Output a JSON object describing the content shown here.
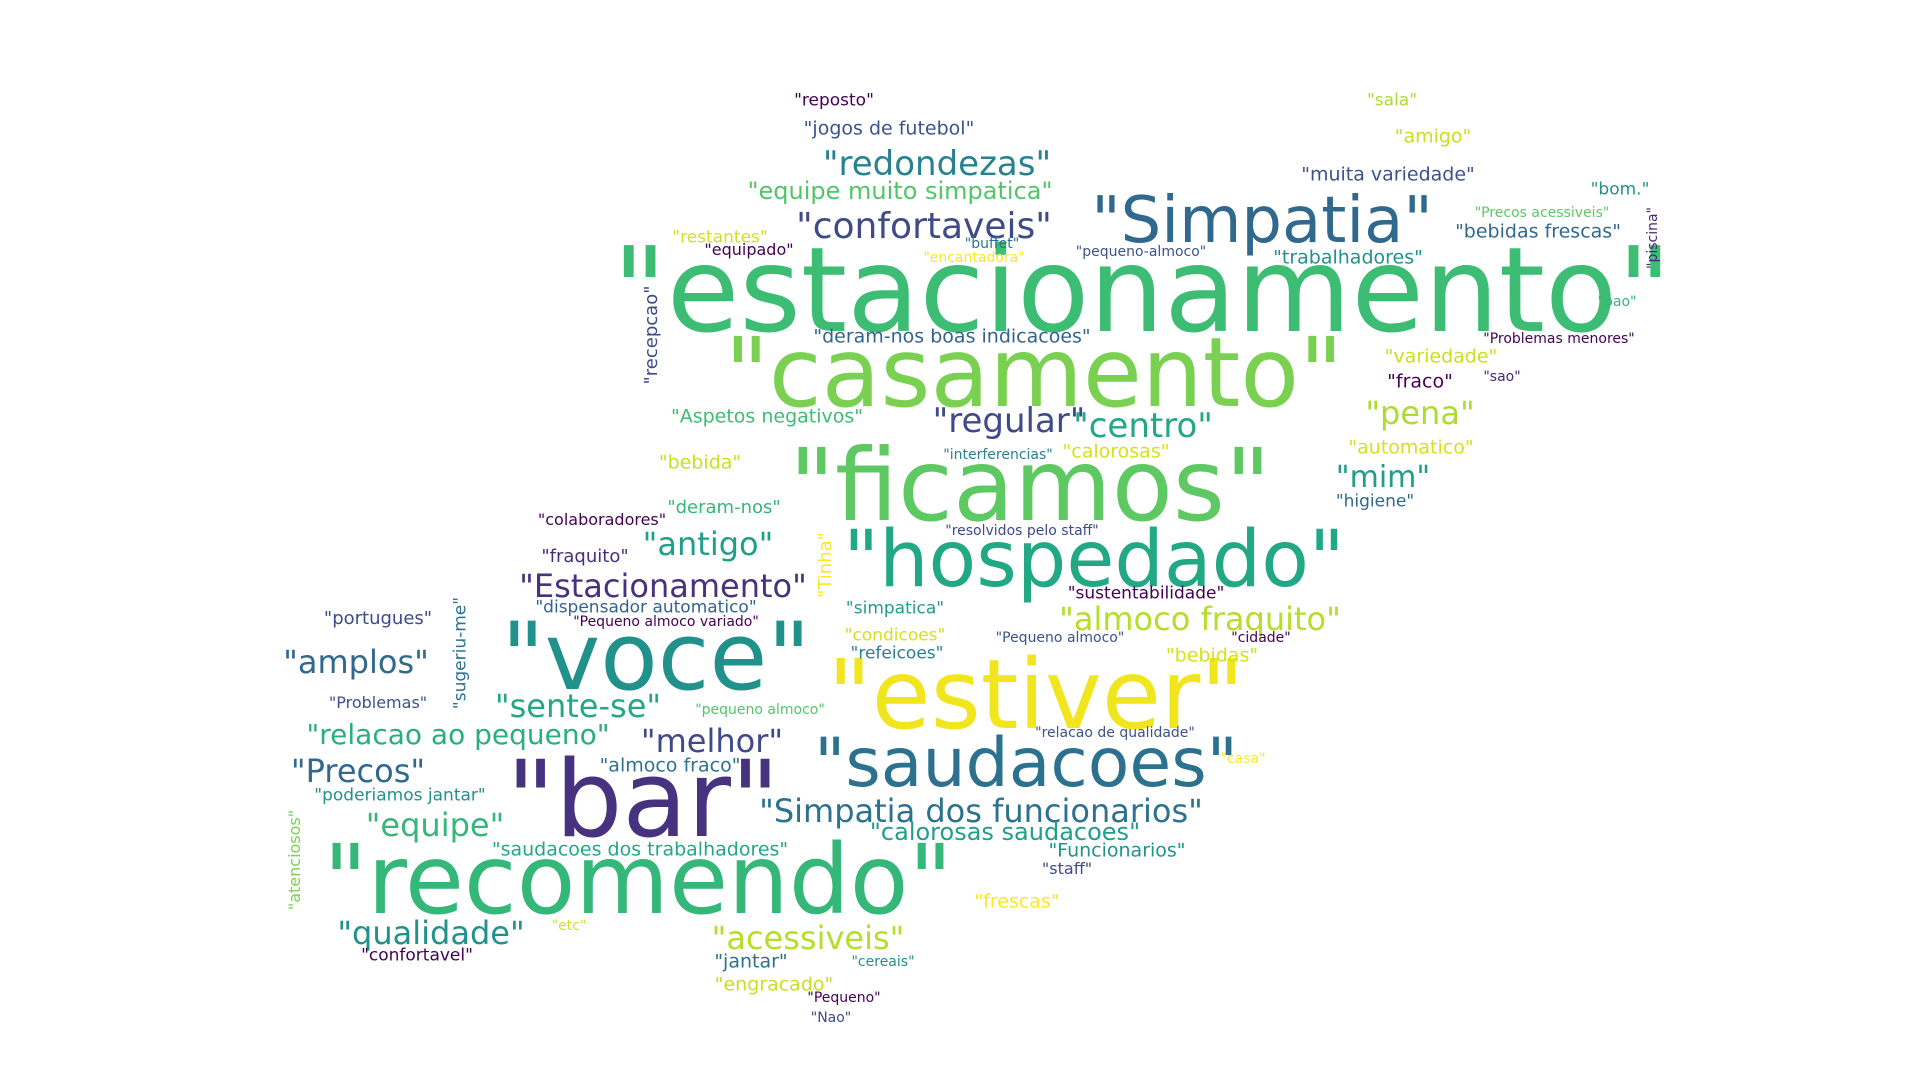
{
  "colors": {
    "background": "#ffffff",
    "palette": [
      "#440154",
      "#472d7b",
      "#3b528b",
      "#2c728e",
      "#21918c",
      "#28ae80",
      "#5ec962",
      "#addc30",
      "#fde725"
    ]
  },
  "words": [
    {
      "text": "\"estacionamento\"",
      "c": "#3dbc74"
    },
    {
      "text": "\"casamento\"",
      "c": "#7ad151"
    },
    {
      "text": "\"ficamos\"",
      "c": "#5ec962"
    },
    {
      "text": "\"hospedado\"",
      "c": "#22a884"
    },
    {
      "text": "\"voce\"",
      "c": "#21918c"
    },
    {
      "text": "\"estiver\"",
      "c": "#f1e51d"
    },
    {
      "text": "\"bar\"",
      "c": "#46327e"
    },
    {
      "text": "\"recomendo\"",
      "c": "#35b779"
    },
    {
      "text": "\"saudacoes\"",
      "c": "#2c728e"
    },
    {
      "text": "\"Simpatia\"",
      "c": "#31688e"
    },
    {
      "text": "\"confortaveis\"",
      "c": "#3e4a89"
    },
    {
      "text": "\"redondezas\"",
      "c": "#26828e"
    },
    {
      "text": "\"equipe muito simpatica\"",
      "c": "#52c569"
    },
    {
      "text": "\"reposto\"",
      "c": "#440154"
    },
    {
      "text": "\"jogos de futebol\"",
      "c": "#3b528b"
    },
    {
      "text": "\"sala\"",
      "c": "#addc30"
    },
    {
      "text": "\"amigo\"",
      "c": "#c8e020"
    },
    {
      "text": "\"muita variedade\"",
      "c": "#3b528b"
    },
    {
      "text": "\"bom.\"",
      "c": "#21918c"
    },
    {
      "text": "\"Precos acessiveis\"",
      "c": "#5ec962"
    },
    {
      "text": "\"bebidas frescas\"",
      "c": "#31688e"
    },
    {
      "text": "\"piscina\"",
      "c": "#482878"
    },
    {
      "text": "\"restantes\"",
      "c": "#d2e21b"
    },
    {
      "text": "\"equipado\"",
      "c": "#440154"
    },
    {
      "text": "\"buffet\"",
      "c": "#2c728e"
    },
    {
      "text": "\"encantadora\"",
      "c": "#fde725"
    },
    {
      "text": "\"pequeno-almoco\"",
      "c": "#3b528b"
    },
    {
      "text": "\"trabalhadores\"",
      "c": "#21918c"
    },
    {
      "text": "\"pao\"",
      "c": "#35b779"
    },
    {
      "text": "\"recepcao\"",
      "c": "#3e4a89"
    },
    {
      "text": "\"deram-nos boas indicacoes\"",
      "c": "#33638d"
    },
    {
      "text": "\"Problemas menores\"",
      "c": "#440154"
    },
    {
      "text": "\"variedade\"",
      "c": "#c8e020"
    },
    {
      "text": "\"fraco\"",
      "c": "#440154"
    },
    {
      "text": "\"sao\"",
      "c": "#482878"
    },
    {
      "text": "\"Aspetos negativos\"",
      "c": "#3dbc74"
    },
    {
      "text": "\"regular\"",
      "c": "#3e4a89"
    },
    {
      "text": "\"centro\"",
      "c": "#22a884"
    },
    {
      "text": "\"pena\"",
      "c": "#addc30"
    },
    {
      "text": "\"automatico\"",
      "c": "#d2e21b"
    },
    {
      "text": "\"bebida\"",
      "c": "#c8e020"
    },
    {
      "text": "\"interferencias\"",
      "c": "#26828e"
    },
    {
      "text": "\"calorosas\"",
      "c": "#d2e21b"
    },
    {
      "text": "\"mim\"",
      "c": "#1f9e89"
    },
    {
      "text": "\"higiene\"",
      "c": "#31688e"
    },
    {
      "text": "\"deram-nos\"",
      "c": "#35b779"
    },
    {
      "text": "\"colaboradores\"",
      "c": "#440154"
    },
    {
      "text": "\"resolvidos pelo staff\"",
      "c": "#3e4a89"
    },
    {
      "text": "\"fraquito\"",
      "c": "#472d7b"
    },
    {
      "text": "\"antigo\"",
      "c": "#1f9e89"
    },
    {
      "text": "\"Tinha\"",
      "c": "#fde725"
    },
    {
      "text": "\"Estacionamento\"",
      "c": "#46327e"
    },
    {
      "text": "\"sustentabilidade\"",
      "c": "#440154"
    },
    {
      "text": "\"almoco fraquito\"",
      "c": "#b5de2b"
    },
    {
      "text": "\"portugues\"",
      "c": "#3e4a89"
    },
    {
      "text": "\"dispensador automatico\"",
      "c": "#33638d"
    },
    {
      "text": "\"Pequeno almoco variado\"",
      "c": "#440154"
    },
    {
      "text": "\"simpatica\"",
      "c": "#1f9e89"
    },
    {
      "text": "\"Pequeno almoco\"",
      "c": "#3b528b"
    },
    {
      "text": "\"cidade\"",
      "c": "#440154"
    },
    {
      "text": "\"sugeriu-me\"",
      "c": "#2c728e"
    },
    {
      "text": "\"amplos\"",
      "c": "#31688e"
    },
    {
      "text": "\"condicoes\"",
      "c": "#d2e21b"
    },
    {
      "text": "\"refeicoes\"",
      "c": "#26828e"
    },
    {
      "text": "\"bebidas\"",
      "c": "#d2e21b"
    },
    {
      "text": "\"Problemas\"",
      "c": "#3b528b"
    },
    {
      "text": "\"sente-se\"",
      "c": "#22a884"
    },
    {
      "text": "\"pequeno almoco\"",
      "c": "#52c569"
    },
    {
      "text": "\"relacao ao pequeno\"",
      "c": "#29af7f"
    },
    {
      "text": "\"melhor\"",
      "c": "#3e4a89"
    },
    {
      "text": "\"relacao de qualidade\"",
      "c": "#3b528b"
    },
    {
      "text": "\"casa\"",
      "c": "#fde725"
    },
    {
      "text": "\"Precos\"",
      "c": "#31688e"
    },
    {
      "text": "\"almoco fraco\"",
      "c": "#2c728e"
    },
    {
      "text": "\"poderiamos jantar\"",
      "c": "#21918c"
    },
    {
      "text": "\"Simpatia dos funcionarios\"",
      "c": "#2c728e"
    },
    {
      "text": "\"equipe\"",
      "c": "#35b779"
    },
    {
      "text": "\"atenciosos\"",
      "c": "#7ad151"
    },
    {
      "text": "\"calorosas saudacoes\"",
      "c": "#1f9e89"
    },
    {
      "text": "\"saudacoes dos trabalhadores\"",
      "c": "#22a884"
    },
    {
      "text": "\"Funcionarios\"",
      "c": "#21918c"
    },
    {
      "text": "\"staff\"",
      "c": "#3e4a89"
    },
    {
      "text": "\"frescas\"",
      "c": "#fde725"
    },
    {
      "text": "\"qualidade\"",
      "c": "#21918c"
    },
    {
      "text": "\"etc\"",
      "c": "#d2e21b"
    },
    {
      "text": "\"acessiveis\"",
      "c": "#b5de2b"
    },
    {
      "text": "\"confortavel\"",
      "c": "#440154"
    },
    {
      "text": "\"jantar\"",
      "c": "#2c728e"
    },
    {
      "text": "\"cereais\"",
      "c": "#21918c"
    },
    {
      "text": "\"engracado\"",
      "c": "#c8e020"
    },
    {
      "text": "\"Pequeno\"",
      "c": "#440154"
    },
    {
      "text": "\"Nao\"",
      "c": "#3e4a89"
    }
  ]
}
